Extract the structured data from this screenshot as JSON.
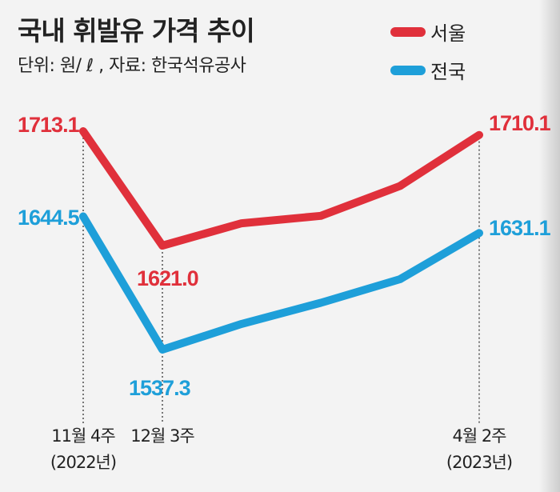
{
  "title": "국내 휘발유 가격 추이",
  "subtitle": "단위: 원/ ℓ , 자료: 한국석유공사",
  "colors": {
    "seoul": "#e0303b",
    "national": "#1e9fd9"
  },
  "chart_data": {
    "type": "line",
    "title": "국내 휘발유 가격 추이",
    "unit": "원/ℓ",
    "source": "한국석유공사",
    "x": [
      0,
      1,
      2,
      3,
      4,
      5
    ],
    "x_ticks": [
      {
        "index": 0,
        "line1": "11월 4주",
        "line2": "(2022년)"
      },
      {
        "index": 1,
        "line1": "12월 3주",
        "line2": ""
      },
      {
        "index": 5,
        "line1": "4월 2주",
        "line2": "(2023년)"
      }
    ],
    "series": [
      {
        "name": "서울",
        "color": "#e0303b",
        "values": [
          1713.1,
          1621.0,
          1639,
          1645,
          1669,
          1710.1
        ]
      },
      {
        "name": "전국",
        "color": "#1e9fd9",
        "values": [
          1644.5,
          1537.3,
          1558,
          1575,
          1594,
          1631.1
        ]
      }
    ],
    "data_labels": [
      {
        "series": 0,
        "index": 0,
        "text": "1713.1"
      },
      {
        "series": 0,
        "index": 1,
        "text": "1621.0"
      },
      {
        "series": 0,
        "index": 5,
        "text": "1710.1"
      },
      {
        "series": 1,
        "index": 0,
        "text": "1644.5"
      },
      {
        "series": 1,
        "index": 1,
        "text": "1537.3"
      },
      {
        "series": 1,
        "index": 5,
        "text": "1631.1"
      }
    ],
    "legend": "top-right",
    "grid": false
  }
}
